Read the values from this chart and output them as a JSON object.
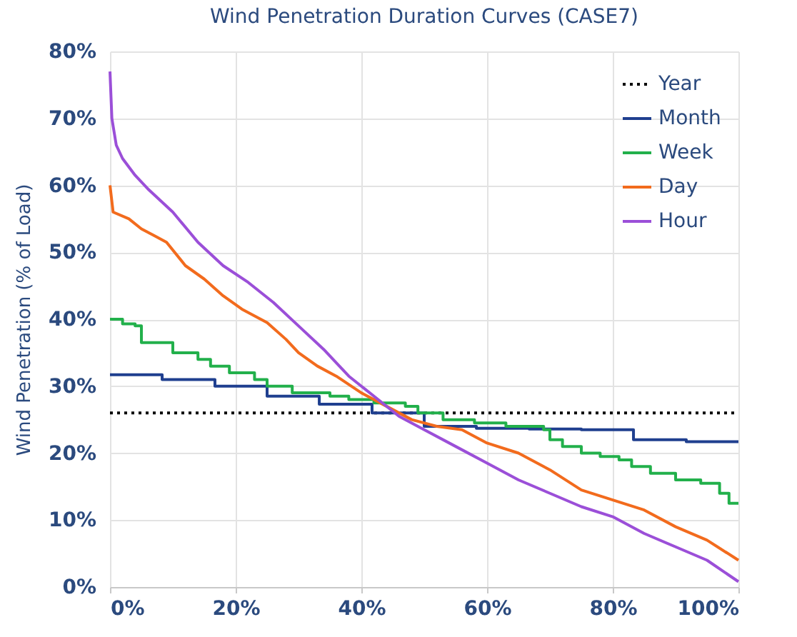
{
  "chart_data": {
    "type": "line",
    "title": "Wind Penetration Duration Curves (CASE7)",
    "ylabel": "Wind Penetration (% of Load)",
    "xlim": [
      0,
      100
    ],
    "xticks": [
      {
        "value": 0,
        "label": "0%"
      },
      {
        "value": 20,
        "label": "20%"
      },
      {
        "value": 40,
        "label": "40%"
      },
      {
        "value": 60,
        "label": "60%"
      },
      {
        "value": 80,
        "label": "80%"
      },
      {
        "value": 100,
        "label": "100%"
      }
    ],
    "ylim": [
      0,
      80
    ],
    "yticks": [
      {
        "value": 0,
        "label": "0%"
      },
      {
        "value": 10,
        "label": "10%"
      },
      {
        "value": 20,
        "label": "20%"
      },
      {
        "value": 30,
        "label": "30%"
      },
      {
        "value": 40,
        "label": "40%"
      },
      {
        "value": 50,
        "label": "50%"
      },
      {
        "value": 60,
        "label": "60%"
      },
      {
        "value": 70,
        "label": "70%"
      },
      {
        "value": 80,
        "label": "80%"
      }
    ],
    "grid": true,
    "legend": "top right",
    "series": [
      {
        "name": "Year",
        "color": "#000000",
        "line_style": "dotted",
        "x": [
          0,
          100
        ],
        "values": [
          26,
          26
        ]
      },
      {
        "name": "Month",
        "color": "#1f3f8f",
        "type": "step",
        "x": [
          0,
          8.3,
          16.7,
          25,
          33.3,
          41.7,
          50,
          58.3,
          66.7,
          75,
          83.3,
          91.7,
          100
        ],
        "values": [
          31.7,
          31,
          30,
          28.5,
          27.3,
          26,
          24,
          23.7,
          23.6,
          23.5,
          22,
          21.7,
          21.7
        ]
      },
      {
        "name": "Week",
        "color": "#22b04b",
        "type": "step",
        "x": [
          0,
          2,
          4,
          5,
          10,
          14,
          16,
          19,
          23,
          25,
          29,
          35,
          38,
          42,
          47,
          49,
          53,
          58,
          63,
          69,
          70,
          72,
          75,
          78,
          81,
          83,
          86,
          90,
          94,
          97,
          98.5,
          100
        ],
        "values": [
          40,
          39.3,
          39,
          36.5,
          35,
          34,
          33,
          32,
          31,
          30,
          29,
          28.5,
          28,
          27.5,
          27,
          26,
          25,
          24.5,
          24,
          23.5,
          22,
          21,
          20,
          19.5,
          19,
          18,
          17,
          16,
          15.5,
          14,
          12.5,
          12.5
        ]
      },
      {
        "name": "Day",
        "color": "#f26b1d",
        "x": [
          0,
          0.5,
          3,
          5,
          7,
          9,
          12,
          15,
          18,
          21,
          25,
          28,
          30,
          33,
          36,
          40,
          44,
          48,
          52,
          56,
          60,
          65,
          70,
          75,
          80,
          85,
          90,
          95,
          100
        ],
        "values": [
          60,
          56,
          55,
          53.5,
          52.5,
          51.5,
          48,
          46,
          43.5,
          41.5,
          39.5,
          37,
          35,
          33,
          31.5,
          29,
          27,
          25,
          24,
          23.5,
          21.5,
          20,
          17.5,
          14.5,
          13,
          11.5,
          9,
          7,
          4
        ]
      },
      {
        "name": "Hour",
        "color": "#9b4fd8",
        "x": [
          0,
          0.3,
          1,
          2,
          4,
          6,
          10,
          14,
          18,
          22,
          26,
          30,
          34,
          38,
          42,
          46,
          50,
          55,
          60,
          65,
          70,
          75,
          80,
          85,
          90,
          95,
          100
        ],
        "values": [
          77,
          70,
          66,
          64,
          61.5,
          59.5,
          56,
          51.5,
          48,
          45.5,
          42.5,
          39,
          35.5,
          31.5,
          28.5,
          25.5,
          23.5,
          21,
          18.5,
          16,
          14,
          12,
          10.5,
          8,
          6,
          4,
          0.8
        ]
      }
    ]
  }
}
